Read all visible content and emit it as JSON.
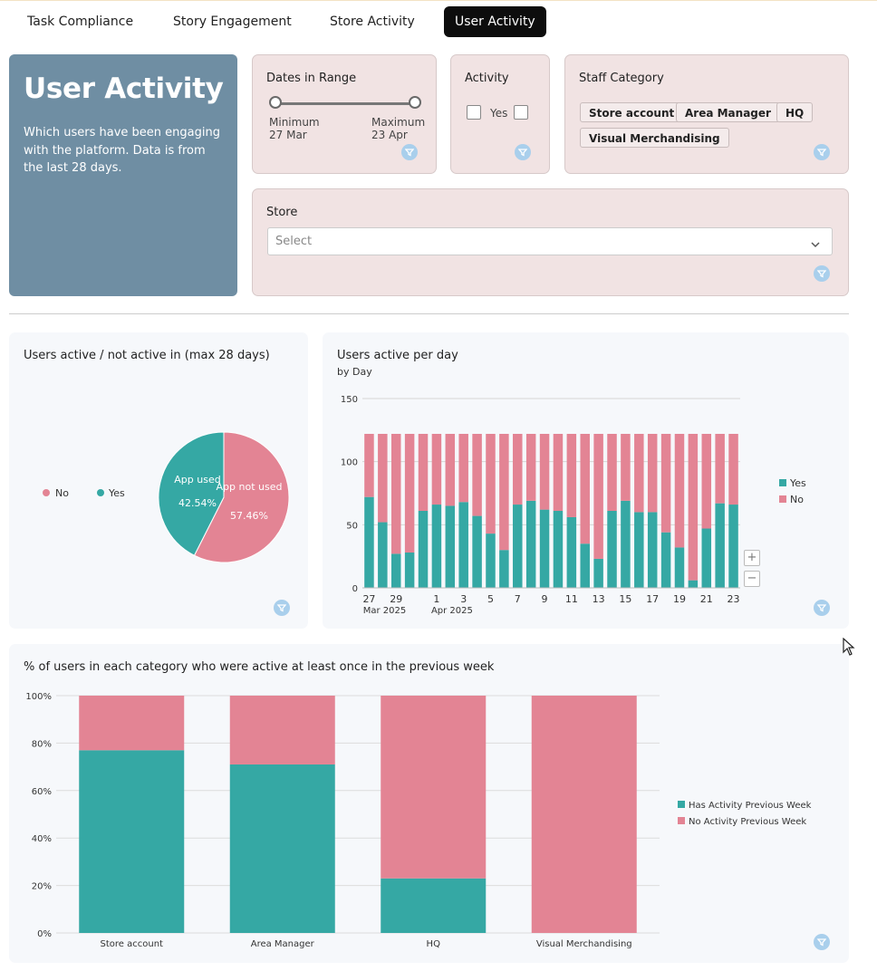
{
  "tabs": [
    {
      "label": "Task Compliance",
      "active": false
    },
    {
      "label": "Story Engagement",
      "active": false
    },
    {
      "label": "Store Activity",
      "active": false
    },
    {
      "label": "User Activity",
      "active": true
    }
  ],
  "hero": {
    "title": "User Activity",
    "description": "Which users have been engaging with the platform. Data is from the last 28 days."
  },
  "filters": {
    "dates": {
      "title": "Dates in Range",
      "min_label": "Minimum",
      "min_value": "27 Mar",
      "max_label": "Maximum",
      "max_value": "23 Apr"
    },
    "activity": {
      "title": "Activity",
      "option_yes": "Yes"
    },
    "staff": {
      "title": "Staff Category",
      "chips": [
        "Store account",
        "Area Manager",
        "HQ",
        "Visual Merchandising"
      ]
    },
    "store": {
      "title": "Store",
      "placeholder": "Select"
    }
  },
  "colors": {
    "yes": "#35a8a4",
    "no": "#e38494",
    "accent_dark": "#0d0d0d",
    "hero_bg": "#6f8ea3",
    "filter_bg": "#f1e3e3"
  },
  "icons": {
    "filter": "funnel-icon",
    "dropdown": "chevron-down-icon",
    "cursor": "mouse-pointer-icon"
  },
  "pie_panel": {
    "title": "Users active / not active in (max 28 days)",
    "legend": [
      "No",
      "Yes"
    ],
    "chart_data": {
      "type": "pie",
      "slices": [
        {
          "name": "No",
          "label": "App not used",
          "value": 57.46,
          "display": "57.46%"
        },
        {
          "name": "Yes",
          "label": "App used",
          "value": 42.54,
          "display": "42.54%"
        }
      ]
    }
  },
  "daily_panel": {
    "title": "Users active per day",
    "subtitle": "by Day",
    "zoom_in": "+",
    "zoom_out": "−",
    "chart_data": {
      "type": "bar",
      "stacked": true,
      "categories": [
        "27",
        "28",
        "29",
        "30",
        "31",
        "1",
        "2",
        "3",
        "4",
        "5",
        "6",
        "7",
        "8",
        "9",
        "10",
        "11",
        "12",
        "13",
        "14",
        "15",
        "16",
        "17",
        "18",
        "19",
        "20",
        "21",
        "22",
        "23"
      ],
      "x_ticks": [
        {
          "label": "27",
          "sub": "Mar 2025",
          "index": 0
        },
        {
          "label": "29",
          "index": 2
        },
        {
          "label": "1",
          "sub": "Apr 2025",
          "index": 5
        },
        {
          "label": "3",
          "index": 7
        },
        {
          "label": "5",
          "index": 9
        },
        {
          "label": "7",
          "index": 11
        },
        {
          "label": "9",
          "index": 13
        },
        {
          "label": "11",
          "index": 15
        },
        {
          "label": "13",
          "index": 17
        },
        {
          "label": "15",
          "index": 19
        },
        {
          "label": "17",
          "index": 21
        },
        {
          "label": "19",
          "index": 23
        },
        {
          "label": "21",
          "index": 25
        },
        {
          "label": "23",
          "index": 27
        }
      ],
      "ylim": [
        0,
        150
      ],
      "yticks": [
        0,
        50,
        100,
        150
      ],
      "grid": true,
      "legend_position": "right",
      "series": [
        {
          "name": "Yes",
          "values": [
            72,
            52,
            27,
            28,
            61,
            66,
            65,
            68,
            57,
            43,
            30,
            66,
            69,
            62,
            61,
            56,
            35,
            23,
            61,
            69,
            60,
            60,
            44,
            32,
            6,
            47,
            67,
            66
          ]
        },
        {
          "name": "No",
          "values": [
            50,
            70,
            95,
            94,
            61,
            56,
            57,
            54,
            65,
            79,
            92,
            56,
            53,
            60,
            61,
            66,
            87,
            99,
            61,
            53,
            62,
            62,
            78,
            90,
            116,
            75,
            55,
            56
          ]
        }
      ]
    }
  },
  "category_panel": {
    "title": "% of users in each category who were active at least once in the previous week",
    "chart_data": {
      "type": "bar",
      "stacked": true,
      "categories": [
        "Store account",
        "Area Manager",
        "HQ",
        "Visual Merchandising"
      ],
      "ylim": [
        0,
        100
      ],
      "yticks": [
        "0%",
        "20%",
        "40%",
        "60%",
        "80%",
        "100%"
      ],
      "grid": true,
      "legend_position": "right",
      "series": [
        {
          "name": "Has Activity Previous Week",
          "values": [
            77,
            71,
            23,
            0
          ]
        },
        {
          "name": "No Activity Previous Week",
          "values": [
            23,
            29,
            77,
            100
          ]
        }
      ]
    }
  }
}
